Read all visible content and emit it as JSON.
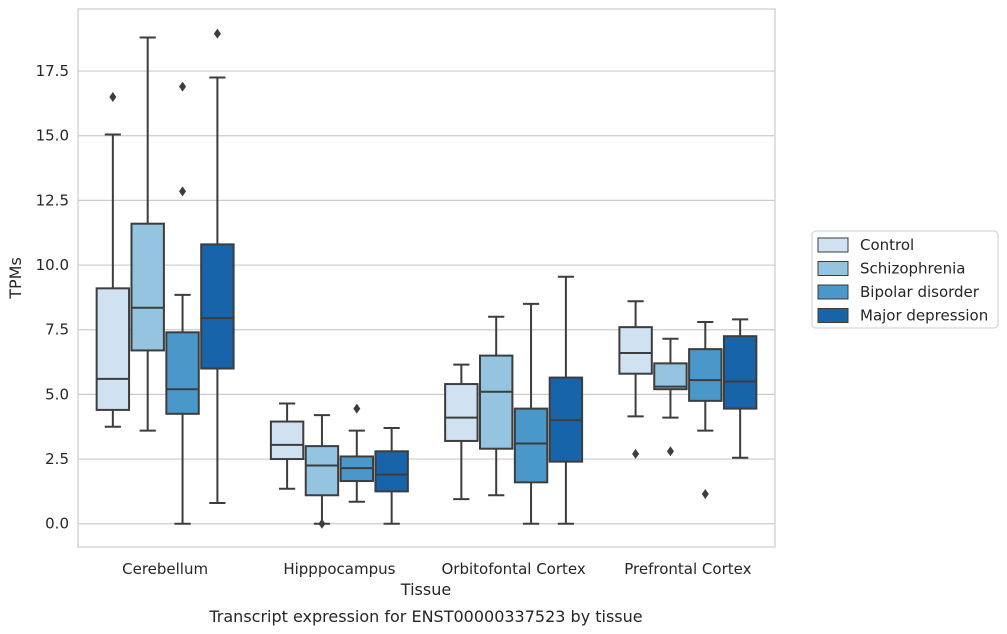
{
  "chart_data": {
    "type": "box",
    "xlabel": "Tissue",
    "ylabel": "TPMs",
    "caption": "Transcript expression for ENST00000337523 by tissue",
    "ylim": [
      -0.9,
      19.9
    ],
    "yticks": [
      "0.0",
      "2.5",
      "5.0",
      "7.5",
      "10.0",
      "12.5",
      "15.0",
      "17.5"
    ],
    "grid": "horizontal",
    "legend_position": "right",
    "categories": [
      "Cerebellum",
      "Hipppocampus",
      "Orbitofontal Cortex",
      "Prefrontal Cortex"
    ],
    "series": [
      {
        "name": "Control",
        "color": "#d0e1f2",
        "boxes": [
          {
            "q1": 4.4,
            "median": 5.6,
            "q3": 9.1,
            "whisker_low": 3.75,
            "whisker_high": 15.05,
            "outliers": [
              16.5
            ]
          },
          {
            "q1": 2.5,
            "median": 3.05,
            "q3": 3.95,
            "whisker_low": 1.35,
            "whisker_high": 4.65,
            "outliers": []
          },
          {
            "q1": 3.2,
            "median": 4.1,
            "q3": 5.4,
            "whisker_low": 0.95,
            "whisker_high": 6.15,
            "outliers": []
          },
          {
            "q1": 5.8,
            "median": 6.6,
            "q3": 7.6,
            "whisker_low": 4.15,
            "whisker_high": 8.6,
            "outliers": [
              2.7
            ]
          }
        ]
      },
      {
        "name": "Schizophrenia",
        "color": "#94c4df",
        "boxes": [
          {
            "q1": 6.7,
            "median": 8.35,
            "q3": 11.6,
            "whisker_low": 3.6,
            "whisker_high": 18.8,
            "outliers": []
          },
          {
            "q1": 1.1,
            "median": 2.25,
            "q3": 3.0,
            "whisker_low": 0.0,
            "whisker_high": 4.2,
            "outliers": [
              0.0
            ]
          },
          {
            "q1": 2.9,
            "median": 5.1,
            "q3": 6.5,
            "whisker_low": 1.1,
            "whisker_high": 8.0,
            "outliers": []
          },
          {
            "q1": 5.2,
            "median": 5.3,
            "q3": 6.2,
            "whisker_low": 4.1,
            "whisker_high": 7.15,
            "outliers": [
              2.8
            ]
          }
        ]
      },
      {
        "name": "Bipolar disorder",
        "color": "#4a98c9",
        "boxes": [
          {
            "q1": 4.25,
            "median": 5.2,
            "q3": 7.4,
            "whisker_low": 0.0,
            "whisker_high": 8.85,
            "outliers": [
              16.9,
              12.85
            ]
          },
          {
            "q1": 1.65,
            "median": 2.15,
            "q3": 2.6,
            "whisker_low": 0.85,
            "whisker_high": 3.6,
            "outliers": [
              4.45
            ]
          },
          {
            "q1": 1.6,
            "median": 3.1,
            "q3": 4.45,
            "whisker_low": 0.0,
            "whisker_high": 8.5,
            "outliers": []
          },
          {
            "q1": 4.75,
            "median": 5.55,
            "q3": 6.75,
            "whisker_low": 3.6,
            "whisker_high": 7.8,
            "outliers": [
              1.15
            ]
          }
        ]
      },
      {
        "name": "Major depression",
        "color": "#1764ab",
        "boxes": [
          {
            "q1": 6.0,
            "median": 7.95,
            "q3": 10.8,
            "whisker_low": 0.8,
            "whisker_high": 17.25,
            "outliers": [
              18.95
            ]
          },
          {
            "q1": 1.25,
            "median": 1.9,
            "q3": 2.8,
            "whisker_low": 0.0,
            "whisker_high": 3.7,
            "outliers": []
          },
          {
            "q1": 2.4,
            "median": 4.0,
            "q3": 5.65,
            "whisker_low": 0.0,
            "whisker_high": 9.55,
            "outliers": []
          },
          {
            "q1": 4.45,
            "median": 5.5,
            "q3": 7.25,
            "whisker_low": 2.55,
            "whisker_high": 7.9,
            "outliers": []
          }
        ]
      }
    ]
  }
}
